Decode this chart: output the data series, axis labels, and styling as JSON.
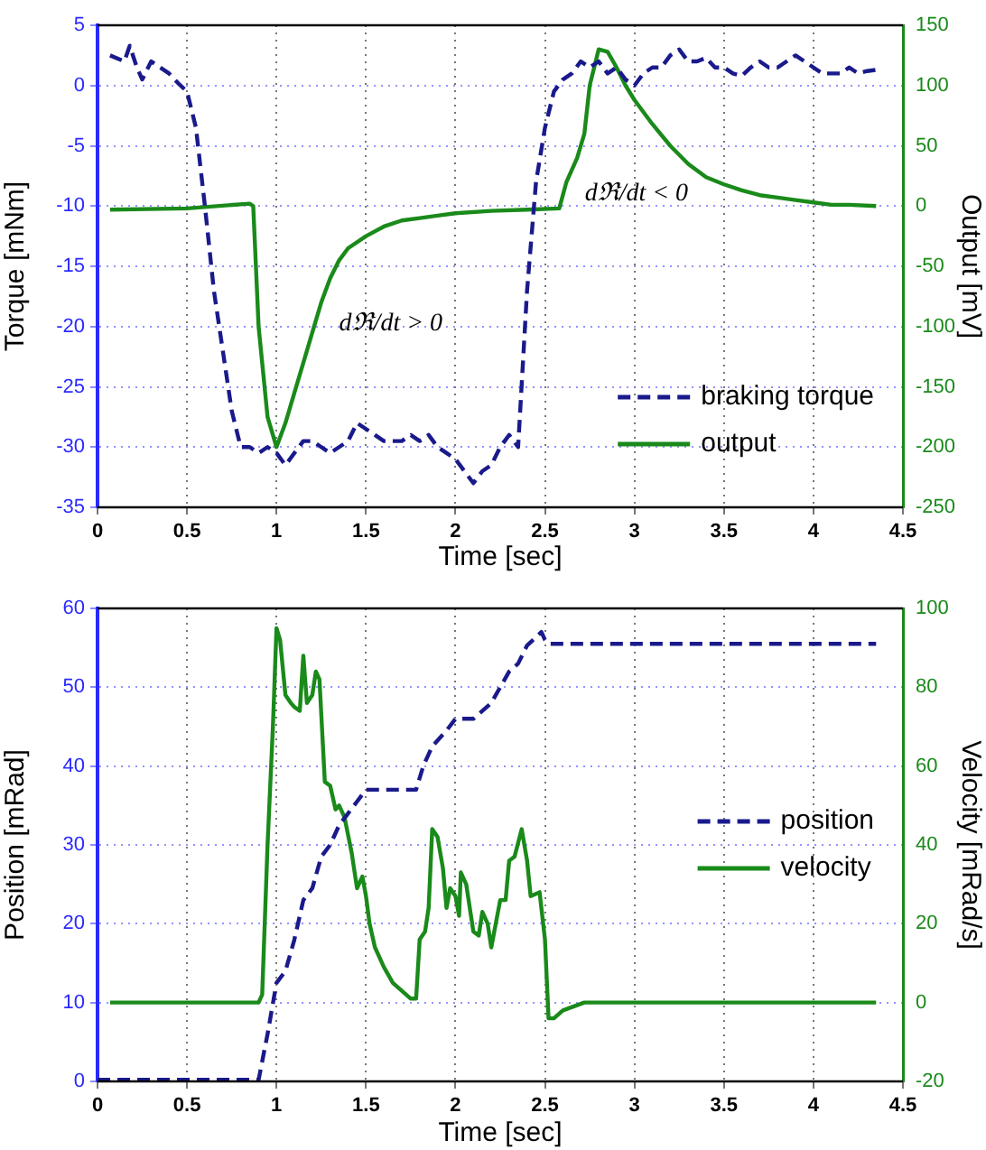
{
  "chart_data": [
    {
      "type": "line",
      "xlabel": "Time [sec]",
      "ylabel": "Torque [mNm]",
      "y2label": "Output [mV]",
      "xlim": [
        0,
        4.5
      ],
      "xticks": [
        0,
        0.5,
        1,
        1.5,
        2,
        2.5,
        3,
        3.5,
        4,
        4.5
      ],
      "ylim": [
        -35,
        5
      ],
      "yticks": [
        -35,
        -30,
        -25,
        -20,
        -15,
        -10,
        -5,
        0,
        5
      ],
      "y2lim": [
        -250,
        150
      ],
      "y2ticks": [
        -250,
        -200,
        -150,
        -100,
        -50,
        0,
        50,
        100,
        150
      ],
      "grid": true,
      "legend": "bottom right",
      "marker": "none",
      "annotations": [
        "dℜ/dt > 0",
        "dℜ/dt < 0"
      ],
      "series": [
        {
          "name": "braking torque",
          "color": "#1a1a8c",
          "line_style": "dashed",
          "x": [
            0.07,
            0.15,
            0.18,
            0.22,
            0.25,
            0.3,
            0.4,
            0.45,
            0.5,
            0.55,
            0.6,
            0.65,
            0.7,
            0.75,
            0.8,
            0.85,
            0.9,
            0.95,
            1.0,
            1.05,
            1.1,
            1.15,
            1.2,
            1.25,
            1.3,
            1.35,
            1.4,
            1.45,
            1.5,
            1.55,
            1.6,
            1.65,
            1.7,
            1.75,
            1.8,
            1.85,
            1.9,
            1.95,
            2.0,
            2.05,
            2.1,
            2.15,
            2.2,
            2.25,
            2.3,
            2.35,
            2.4,
            2.45,
            2.5,
            2.55,
            2.6,
            2.65,
            2.7,
            2.75,
            2.8,
            2.85,
            2.9,
            2.95,
            3.0,
            3.05,
            3.1,
            3.15,
            3.2,
            3.25,
            3.3,
            3.35,
            3.4,
            3.45,
            3.5,
            3.55,
            3.6,
            3.65,
            3.7,
            3.75,
            3.8,
            3.85,
            3.9,
            3.95,
            4.0,
            4.05,
            4.1,
            4.15,
            4.2,
            4.25,
            4.3,
            4.35
          ],
          "values": [
            2.5,
            2,
            3.3,
            1.5,
            0.5,
            2,
            1,
            0.2,
            -0.5,
            -3.5,
            -10,
            -17,
            -22,
            -27,
            -30,
            -30,
            -30.5,
            -30,
            -30.5,
            -31.5,
            -30.5,
            -29.5,
            -29.5,
            -30,
            -30.5,
            -30,
            -29.5,
            -28,
            -28.5,
            -29,
            -29.5,
            -29.5,
            -29.5,
            -29,
            -29.5,
            -29,
            -30,
            -30.5,
            -31,
            -32,
            -33,
            -32,
            -31.5,
            -30,
            -29,
            -30,
            -17,
            -8,
            -3.5,
            -0.5,
            0.5,
            1,
            2,
            1.5,
            2,
            1,
            1.5,
            0.5,
            0,
            1,
            1.5,
            1.5,
            2.5,
            3,
            2,
            2,
            2.3,
            1.5,
            1.5,
            1,
            0.8,
            1.5,
            2,
            1.5,
            1.5,
            2,
            2.5,
            2,
            1.5,
            1,
            1,
            1,
            1.5,
            1,
            1.2,
            1.3
          ]
        },
        {
          "name": "output",
          "color": "#1a8a1a",
          "line_style": "solid",
          "axis": "y2",
          "x": [
            0.07,
            0.5,
            0.85,
            0.87,
            0.9,
            0.95,
            1.0,
            1.05,
            1.1,
            1.15,
            1.2,
            1.25,
            1.3,
            1.35,
            1.4,
            1.5,
            1.6,
            1.7,
            1.8,
            1.9,
            2.0,
            2.2,
            2.4,
            2.58,
            2.62,
            2.68,
            2.72,
            2.75,
            2.8,
            2.85,
            2.9,
            2.95,
            3.0,
            3.1,
            3.2,
            3.3,
            3.4,
            3.5,
            3.6,
            3.7,
            3.8,
            3.9,
            4.0,
            4.1,
            4.2,
            4.35
          ],
          "values": [
            -3,
            -2,
            2,
            0,
            -100,
            -175,
            -200,
            -180,
            -155,
            -130,
            -105,
            -80,
            -60,
            -45,
            -35,
            -25,
            -17,
            -12,
            -10,
            -8,
            -6,
            -4,
            -3,
            -2,
            20,
            40,
            60,
            100,
            130,
            128,
            115,
            100,
            88,
            68,
            50,
            35,
            24,
            18,
            13,
            9,
            7,
            5,
            3,
            1,
            1,
            0
          ]
        }
      ]
    },
    {
      "type": "line",
      "xlabel": "Time [sec]",
      "ylabel": "Position [mRad]",
      "y2label": "Velocity [mRad/s]",
      "xlim": [
        0,
        4.5
      ],
      "xticks": [
        0,
        0.5,
        1,
        1.5,
        2,
        2.5,
        3,
        3.5,
        4,
        4.5
      ],
      "ylim": [
        0,
        60
      ],
      "yticks": [
        0,
        10,
        20,
        30,
        40,
        50,
        60
      ],
      "y2lim": [
        -20,
        100
      ],
      "y2ticks": [
        -20,
        0,
        20,
        40,
        60,
        80,
        100
      ],
      "grid": true,
      "legend": "right",
      "marker": "none",
      "series": [
        {
          "name": "position",
          "color": "#1a1a8c",
          "line_style": "dashed",
          "x": [
            0.0,
            0.9,
            0.95,
            1.0,
            1.05,
            1.1,
            1.15,
            1.2,
            1.25,
            1.3,
            1.35,
            1.4,
            1.45,
            1.5,
            1.78,
            1.82,
            1.87,
            1.95,
            2.0,
            2.1,
            2.2,
            2.25,
            2.3,
            2.35,
            2.4,
            2.48,
            2.5,
            2.52,
            4.35
          ],
          "values": [
            0.2,
            0.2,
            6,
            12.5,
            14,
            18,
            23,
            24.5,
            28.5,
            30,
            32.5,
            34,
            35.5,
            37,
            37,
            40,
            42.5,
            44.5,
            46,
            46,
            48,
            50,
            52,
            53,
            55.3,
            57,
            56,
            55.5,
            55.5
          ]
        },
        {
          "name": "velocity",
          "color": "#1a8a1a",
          "line_style": "solid",
          "axis": "y2",
          "x": [
            0.07,
            0.9,
            0.92,
            0.95,
            0.98,
            1.0,
            1.02,
            1.05,
            1.08,
            1.1,
            1.13,
            1.15,
            1.17,
            1.2,
            1.22,
            1.24,
            1.27,
            1.3,
            1.33,
            1.35,
            1.38,
            1.42,
            1.45,
            1.48,
            1.5,
            1.52,
            1.55,
            1.6,
            1.65,
            1.7,
            1.75,
            1.78,
            1.8,
            1.83,
            1.85,
            1.87,
            1.9,
            1.93,
            1.95,
            1.97,
            2.0,
            2.02,
            2.03,
            2.06,
            2.1,
            2.13,
            2.15,
            2.18,
            2.2,
            2.25,
            2.28,
            2.3,
            2.33,
            2.37,
            2.4,
            2.42,
            2.47,
            2.5,
            2.52,
            2.55,
            2.6,
            2.72,
            4.35
          ],
          "values": [
            0,
            0,
            2,
            40,
            70,
            95,
            92,
            78,
            76,
            75,
            74,
            88,
            76,
            78,
            84,
            82,
            56,
            55,
            49,
            50,
            47,
            38,
            29,
            32,
            27,
            20,
            14,
            9,
            5,
            3,
            1,
            1,
            16,
            18,
            24,
            44,
            42,
            34,
            24,
            29,
            27,
            22,
            33,
            30,
            18,
            17,
            23,
            20,
            14,
            26,
            26,
            36,
            37,
            44,
            36,
            27,
            28,
            16,
            -4,
            -4,
            -2,
            0,
            0
          ]
        }
      ]
    }
  ]
}
